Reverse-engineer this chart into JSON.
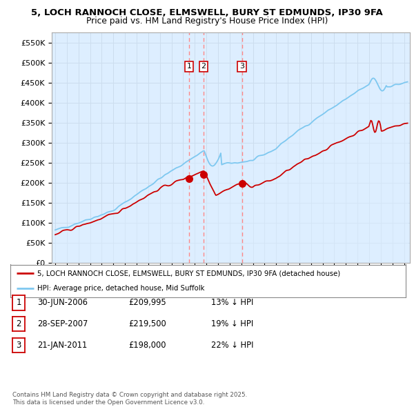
{
  "title_line1": "5, LOCH RANNOCH CLOSE, ELMSWELL, BURY ST EDMUNDS, IP30 9FA",
  "title_line2": "Price paid vs. HM Land Registry's House Price Index (HPI)",
  "ylabel_ticks": [
    "£0",
    "£50K",
    "£100K",
    "£150K",
    "£200K",
    "£250K",
    "£300K",
    "£350K",
    "£400K",
    "£450K",
    "£500K",
    "£550K"
  ],
  "ytick_vals": [
    0,
    50000,
    100000,
    150000,
    200000,
    250000,
    300000,
    350000,
    400000,
    450000,
    500000,
    550000
  ],
  "ylim": [
    0,
    575000
  ],
  "xlim_start": 1994.7,
  "xlim_end": 2025.5,
  "hpi_color": "#7ec8f0",
  "hpi_fill_color": "#ddeeff",
  "price_color": "#cc0000",
  "vline_color": "#ff8888",
  "sale_dates": [
    2006.5,
    2007.75,
    2011.05
  ],
  "sale_labels": [
    "1",
    "2",
    "3"
  ],
  "legend_property": "5, LOCH RANNOCH CLOSE, ELMSWELL, BURY ST EDMUNDS, IP30 9FA (detached house)",
  "legend_hpi": "HPI: Average price, detached house, Mid Suffolk",
  "table_rows": [
    [
      "1",
      "30-JUN-2006",
      "£209,995",
      "13% ↓ HPI"
    ],
    [
      "2",
      "28-SEP-2007",
      "£219,500",
      "19% ↓ HPI"
    ],
    [
      "3",
      "21-JAN-2011",
      "£198,000",
      "22% ↓ HPI"
    ]
  ],
  "footer": "Contains HM Land Registry data © Crown copyright and database right 2025.\nThis data is licensed under the Open Government Licence v3.0.",
  "background_color": "#ffffff",
  "grid_color": "#ccddee"
}
